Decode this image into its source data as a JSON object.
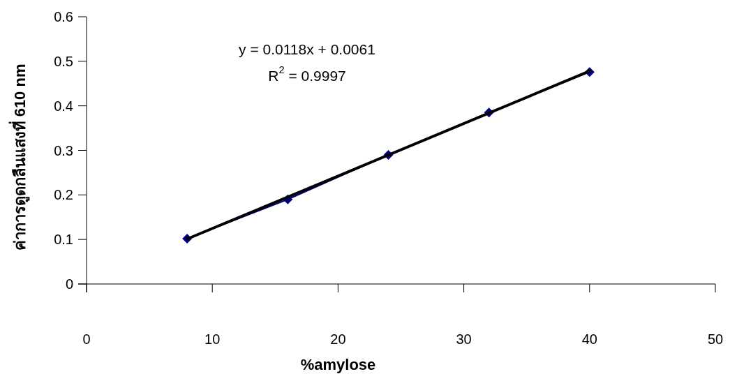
{
  "chart_data": {
    "type": "line",
    "xlabel": "%amylose",
    "ylabel": "ค่าการดูดกลืนแสงที่ 610 nm",
    "xlim": [
      0,
      50
    ],
    "xticks": [
      0,
      10,
      20,
      30,
      40,
      50
    ],
    "ylim": [
      0,
      0.6
    ],
    "yticks": [
      0,
      0.1,
      0.2,
      0.3,
      0.4,
      0.5,
      0.6
    ],
    "grid": false,
    "annotations": [
      "y = 0.0118x + 0.0061",
      "R$^{2}$ = 0.9997"
    ],
    "series": [
      {
        "marker": "diamond",
        "color": "#000080",
        "x": [
          8,
          16,
          24,
          32,
          40
        ],
        "values": [
          0.102,
          0.19,
          0.29,
          0.385,
          0.476
        ]
      },
      {
        "marker": "none",
        "color": "#000000",
        "x": [
          8,
          40
        ],
        "values": [
          0.101,
          0.478
        ]
      }
    ]
  }
}
